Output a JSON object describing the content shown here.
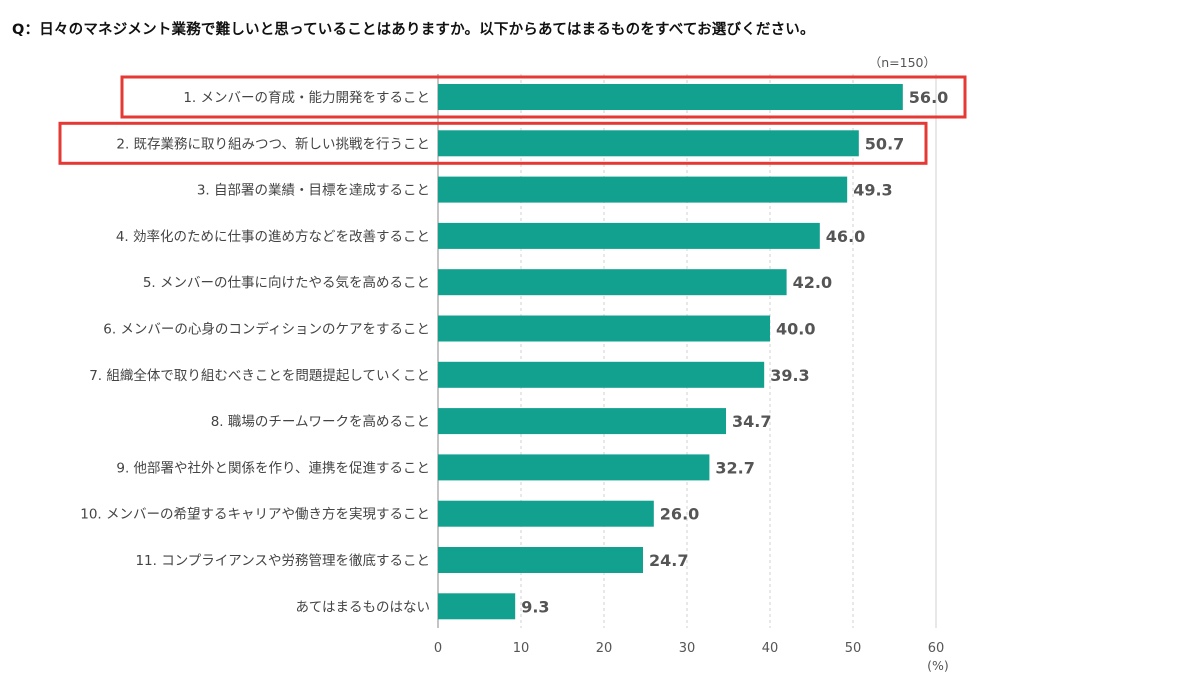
{
  "question": "Q：日々のマネジメント業務で難しいと思っていることはありますか。以下からあてはまるものをすべてお選びください。",
  "sample_size": "（n=150）",
  "unit": "(%)",
  "colors": {
    "bar": "#12a08f",
    "highlight_box": "#e53935",
    "grid": "#d0d0d0",
    "axis": "#888888"
  },
  "chart_data": {
    "type": "bar",
    "orientation": "horizontal",
    "categories": [
      "1. メンバーの育成・能力開発をすること",
      "2. 既存業務に取り組みつつ、新しい挑戦を行うこと",
      "3. 自部署の業績・目標を達成すること",
      "4. 効率化のために仕事の進め方などを改善すること",
      "5. メンバーの仕事に向けたやる気を高めること",
      "6. メンバーの心身のコンディションのケアをすること",
      "7. 組織全体で取り組むべきことを問題提起していくこと",
      "8. 職場のチームワークを高めること",
      "9. 他部署や社外と関係を作り、連携を促進すること",
      "10. メンバーの希望するキャリアや働き方を実現すること",
      "11. コンプライアンスや労務管理を徹底すること",
      "あてはまるものはない"
    ],
    "values": [
      56.0,
      50.7,
      49.3,
      46.0,
      42.0,
      40.0,
      39.3,
      34.7,
      32.7,
      26.0,
      24.7,
      9.3
    ],
    "value_labels": [
      "56.0",
      "50.7",
      "49.3",
      "46.0",
      "42.0",
      "40.0",
      "39.3",
      "34.7",
      "32.7",
      "26.0",
      "24.7",
      "9.3"
    ],
    "xlim": [
      0,
      60
    ],
    "xticks": [
      "0",
      "10",
      "20",
      "30",
      "40",
      "50",
      "60"
    ],
    "xtick_values": [
      0,
      10,
      20,
      30,
      40,
      50,
      60
    ],
    "grid": true,
    "highlighted": [
      0,
      1
    ]
  }
}
